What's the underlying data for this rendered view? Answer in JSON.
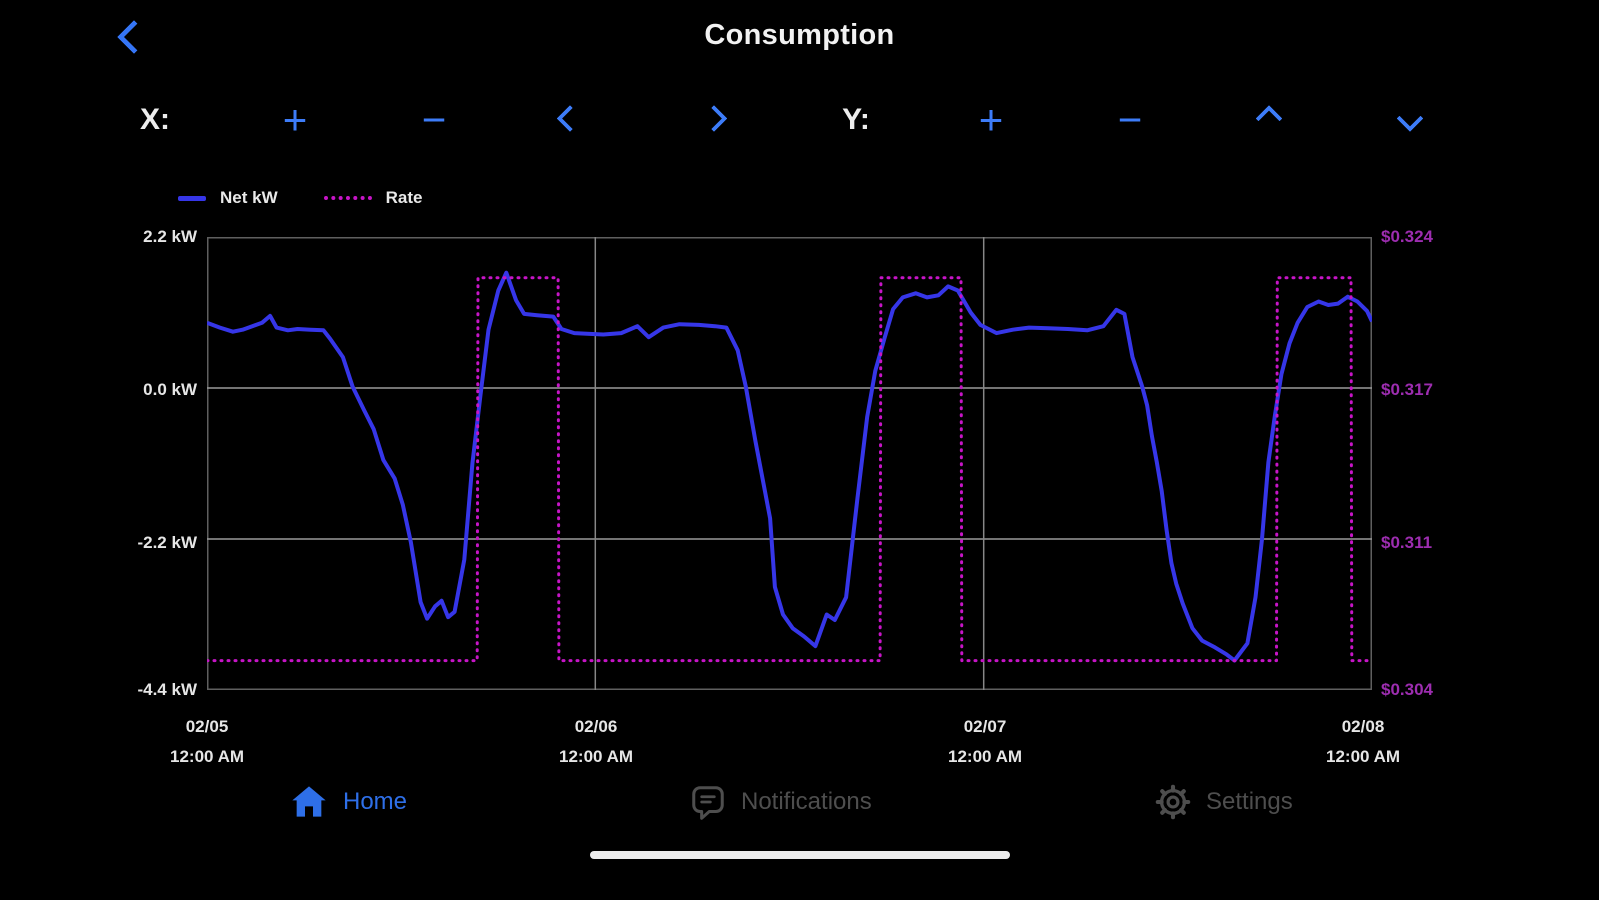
{
  "header": {
    "title": "Consumption"
  },
  "controls": {
    "x_label": "X:",
    "y_label": "Y:",
    "plus_glyph": "+",
    "minus_glyph": "−",
    "buttons": [
      {
        "name": "x-zoom-in",
        "icon": "plus-icon"
      },
      {
        "name": "x-zoom-out",
        "icon": "minus-icon"
      },
      {
        "name": "x-pan-left",
        "icon": "chevron-left-icon"
      },
      {
        "name": "x-pan-right",
        "icon": "chevron-right-icon"
      },
      {
        "name": "y-zoom-in",
        "icon": "plus-icon"
      },
      {
        "name": "y-zoom-out",
        "icon": "minus-icon"
      },
      {
        "name": "y-pan-up",
        "icon": "chevron-up-icon"
      },
      {
        "name": "y-pan-down",
        "icon": "chevron-down-icon"
      }
    ],
    "back_icon": "chevron-left-icon"
  },
  "colors": {
    "accent_blue": "#3d7cf8",
    "net_kw_line": "#3636e8",
    "rate_line": "#c715c7",
    "rate_label": "#9d2db0",
    "inactive_gray": "#4e4e4e",
    "background": "#000000"
  },
  "chart_data": {
    "type": "line",
    "title": "Consumption",
    "x_axis": {
      "unit": "hours since 02/05 12:00 AM",
      "range": [
        0,
        72
      ],
      "tick_hours": [
        0,
        24,
        48,
        72
      ],
      "tick_labels": [
        [
          "02/05",
          "12:00 AM"
        ],
        [
          "02/06",
          "12:00 AM"
        ],
        [
          "02/07",
          "12:00 AM"
        ],
        [
          "02/08",
          "12:00 AM"
        ]
      ]
    },
    "y_left": {
      "title": "Net kW",
      "range": [
        -4.4,
        2.2
      ],
      "values": [
        2.2,
        0.0,
        -2.2,
        -4.4
      ],
      "labels": [
        "2.2 kW",
        "0.0 kW",
        "-2.2 kW",
        "-4.4 kW"
      ]
    },
    "y_right": {
      "title": "Rate ($/kWh)",
      "range": [
        0.304,
        0.324
      ],
      "values": [
        0.324,
        0.317,
        0.311,
        0.304
      ],
      "labels": [
        "$0.324",
        "$0.317",
        "$0.311",
        "$0.304"
      ]
    },
    "grid": {
      "h_lines_kw": [
        0.0,
        -2.2
      ],
      "v_lines_hours": [
        24,
        48
      ]
    },
    "legend_position": "top-left",
    "series": [
      {
        "name": "Net kW",
        "axis": "left",
        "color": "#3636e8",
        "style": "solid",
        "points": [
          [
            0,
            0.95
          ],
          [
            0.8,
            0.88
          ],
          [
            1.6,
            0.82
          ],
          [
            2.2,
            0.85
          ],
          [
            2.8,
            0.9
          ],
          [
            3.4,
            0.95
          ],
          [
            3.9,
            1.05
          ],
          [
            4.3,
            0.88
          ],
          [
            5,
            0.84
          ],
          [
            5.6,
            0.86
          ],
          [
            6.4,
            0.85
          ],
          [
            7.2,
            0.84
          ],
          [
            7.6,
            0.72
          ],
          [
            8.4,
            0.45
          ],
          [
            9,
            0.02
          ],
          [
            9.7,
            -0.32
          ],
          [
            10.3,
            -0.6
          ],
          [
            10.9,
            -1.05
          ],
          [
            11.6,
            -1.32
          ],
          [
            12.1,
            -1.7
          ],
          [
            12.6,
            -2.25
          ],
          [
            13.2,
            -3.12
          ],
          [
            13.6,
            -3.36
          ],
          [
            14.1,
            -3.18
          ],
          [
            14.5,
            -3.1
          ],
          [
            14.9,
            -3.34
          ],
          [
            15.3,
            -3.26
          ],
          [
            15.9,
            -2.5
          ],
          [
            16.4,
            -1.1
          ],
          [
            16.9,
            -0.1
          ],
          [
            17.4,
            0.85
          ],
          [
            18,
            1.42
          ],
          [
            18.5,
            1.68
          ],
          [
            19.1,
            1.28
          ],
          [
            19.6,
            1.08
          ],
          [
            20.4,
            1.06
          ],
          [
            21.4,
            1.04
          ],
          [
            21.9,
            0.86
          ],
          [
            22.7,
            0.8
          ],
          [
            23.5,
            0.79
          ],
          [
            24.5,
            0.78
          ],
          [
            25.6,
            0.8
          ],
          [
            26.6,
            0.9
          ],
          [
            27.3,
            0.74
          ],
          [
            28.2,
            0.88
          ],
          [
            29.2,
            0.93
          ],
          [
            30.4,
            0.92
          ],
          [
            31.4,
            0.9
          ],
          [
            32.1,
            0.88
          ],
          [
            32.8,
            0.55
          ],
          [
            33.3,
            0.02
          ],
          [
            33.9,
            -0.78
          ],
          [
            34.4,
            -1.4
          ],
          [
            34.8,
            -1.9
          ],
          [
            35.1,
            -2.9
          ],
          [
            35.6,
            -3.3
          ],
          [
            36.2,
            -3.5
          ],
          [
            36.9,
            -3.62
          ],
          [
            37.6,
            -3.76
          ],
          [
            38.3,
            -3.3
          ],
          [
            38.8,
            -3.38
          ],
          [
            39.5,
            -3.05
          ],
          [
            40.2,
            -1.6
          ],
          [
            40.8,
            -0.42
          ],
          [
            41.3,
            0.25
          ],
          [
            41.9,
            0.75
          ],
          [
            42.4,
            1.15
          ],
          [
            43,
            1.32
          ],
          [
            43.8,
            1.38
          ],
          [
            44.5,
            1.32
          ],
          [
            45.2,
            1.35
          ],
          [
            45.8,
            1.48
          ],
          [
            46.4,
            1.42
          ],
          [
            47.2,
            1.1
          ],
          [
            47.8,
            0.92
          ],
          [
            48.8,
            0.8
          ],
          [
            49.8,
            0.85
          ],
          [
            50.8,
            0.88
          ],
          [
            52,
            0.87
          ],
          [
            53.2,
            0.86
          ],
          [
            54.4,
            0.84
          ],
          [
            55.4,
            0.9
          ],
          [
            56.2,
            1.14
          ],
          [
            56.7,
            1.08
          ],
          [
            57.2,
            0.45
          ],
          [
            57.8,
            0.02
          ],
          [
            58.1,
            -0.25
          ],
          [
            58.4,
            -0.7
          ],
          [
            58.7,
            -1.08
          ],
          [
            59,
            -1.5
          ],
          [
            59.3,
            -2.06
          ],
          [
            59.6,
            -2.55
          ],
          [
            59.9,
            -2.85
          ],
          [
            60.3,
            -3.14
          ],
          [
            60.9,
            -3.5
          ],
          [
            61.5,
            -3.68
          ],
          [
            62.3,
            -3.78
          ],
          [
            63,
            -3.88
          ],
          [
            63.5,
            -3.97
          ],
          [
            64.3,
            -3.72
          ],
          [
            64.8,
            -3.05
          ],
          [
            65.2,
            -2.2
          ],
          [
            65.6,
            -1.08
          ],
          [
            66,
            -0.4
          ],
          [
            66.4,
            0.2
          ],
          [
            66.9,
            0.65
          ],
          [
            67.4,
            0.95
          ],
          [
            68,
            1.18
          ],
          [
            68.7,
            1.26
          ],
          [
            69.3,
            1.21
          ],
          [
            69.9,
            1.23
          ],
          [
            70.5,
            1.33
          ],
          [
            71.1,
            1.26
          ],
          [
            71.7,
            1.12
          ],
          [
            72,
            0.97
          ]
        ]
      },
      {
        "name": "Rate",
        "axis": "right",
        "color": "#c715c7",
        "style": "dotted",
        "points": [
          [
            0,
            0.3053
          ],
          [
            16.7,
            0.3053
          ],
          [
            16.75,
            0.3222
          ],
          [
            21.7,
            0.3222
          ],
          [
            21.75,
            0.3053
          ],
          [
            41.6,
            0.3053
          ],
          [
            41.65,
            0.3222
          ],
          [
            46.6,
            0.3222
          ],
          [
            46.65,
            0.3053
          ],
          [
            66.1,
            0.3053
          ],
          [
            66.15,
            0.3222
          ],
          [
            70.7,
            0.3222
          ],
          [
            70.75,
            0.3053
          ],
          [
            72,
            0.3053
          ]
        ]
      }
    ]
  },
  "nav": {
    "items": [
      {
        "label": "Home",
        "icon": "home-icon",
        "active": true
      },
      {
        "label": "Notifications",
        "icon": "speech-bubble-icon",
        "active": false
      },
      {
        "label": "Settings",
        "icon": "gear-icon",
        "active": false
      }
    ]
  }
}
